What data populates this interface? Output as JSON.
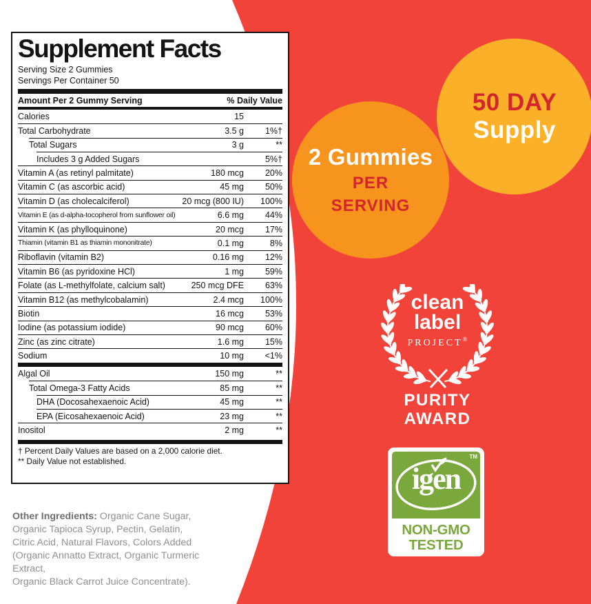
{
  "window": {
    "title": "Supplement Facts product label"
  },
  "colors": {
    "red_bg": "#F1433A",
    "deep_red_text": "#D2262C",
    "orange_circle": "#F7941E",
    "yellow_circle": "#FAB028",
    "green": "#7AA83C",
    "label_black": "#131313",
    "gray_text": "#8F8F8F",
    "gray_bold": "#6E6E6E"
  },
  "supplement": {
    "title": "Supplement Facts",
    "serving_size": "Serving Size 2 Gummies",
    "servings_per_container": "Servings Per Container 50",
    "header": {
      "amount": "Amount Per 2 Gummy Serving",
      "daily_value": "% Daily Value"
    },
    "rows": [
      {
        "name": "Calories",
        "amount": "15",
        "dv": "",
        "indent": 0
      },
      {
        "name": "Total Carbohydrate",
        "amount": "3.5 g",
        "dv": "1%†",
        "indent": 0
      },
      {
        "name": "Total Sugars",
        "amount": "3 g",
        "dv": "**",
        "indent": 1
      },
      {
        "name": "Includes 3 g Added Sugars",
        "amount": "",
        "dv": "5%†",
        "indent": 2
      },
      {
        "name": "Vitamin A (as retinyl palmitate)",
        "amount": "180 mcg",
        "dv": "20%",
        "indent": 0
      },
      {
        "name": "Vitamin C (as ascorbic acid)",
        "amount": "45 mg",
        "dv": "50%",
        "indent": 0
      },
      {
        "name": "Vitamin D (as cholecalciferol)",
        "amount": "20 mcg (800 IU)",
        "dv": "100%",
        "indent": 0
      },
      {
        "name": "Vitamin E (as d-alpha-tocopherol from sunflower oil)",
        "amount": "6.6 mg",
        "dv": "44%",
        "indent": 0
      },
      {
        "name": "Vitamin K (as phylloquinone)",
        "amount": "20 mcg",
        "dv": "17%",
        "indent": 0
      },
      {
        "name": "Thiamin (vitamin B1 as thiamin mononitrate)",
        "amount": "0.1 mg",
        "dv": "8%",
        "indent": 0
      },
      {
        "name": "Riboflavin (vitamin B2)",
        "amount": "0.16 mg",
        "dv": "12%",
        "indent": 0
      },
      {
        "name": "Vitamin B6 (as pyridoxine HCl)",
        "amount": "1 mg",
        "dv": "59%",
        "indent": 0
      },
      {
        "name": "Folate (as L-methylfolate, calcium salt)",
        "amount": "250 mcg DFE",
        "dv": "63%",
        "indent": 0
      },
      {
        "name": "Vitamin B12 (as methylcobalamin)",
        "amount": "2.4 mcg",
        "dv": "100%",
        "indent": 0
      },
      {
        "name": "Biotin",
        "amount": "16 mcg",
        "dv": "53%",
        "indent": 0
      },
      {
        "name": "Iodine (as potassium iodide)",
        "amount": "90 mcg",
        "dv": "60%",
        "indent": 0
      },
      {
        "name": "Zinc (as zinc citrate)",
        "amount": "1.6 mg",
        "dv": "15%",
        "indent": 0
      },
      {
        "name": "Sodium",
        "amount": "10 mg",
        "dv": "<1%",
        "indent": 0
      },
      {
        "name": "Algal Oil",
        "amount": "150 mg",
        "dv": "**",
        "indent": 0,
        "bar_before": true
      },
      {
        "name": "Total Omega-3 Fatty Acids",
        "amount": "85 mg",
        "dv": "**",
        "indent": 1
      },
      {
        "name": "DHA (Docosahexaenoic Acid)",
        "amount": "45 mg",
        "dv": "**",
        "indent": 2
      },
      {
        "name": "EPA (Eicosahexaenoic Acid)",
        "amount": "23 mg",
        "dv": "**",
        "indent": 2
      },
      {
        "name": "Inositol",
        "amount": "2 mg",
        "dv": "**",
        "indent": 0
      }
    ],
    "footnotes": [
      "† Percent Daily Values are based on a 2,000 calorie diet.",
      "** Daily Value not established."
    ]
  },
  "other_ingredients": {
    "label": "Other Ingredients:",
    "line1_rest": " Organic Cane Sugar,",
    "lines": [
      "Organic Tapioca Syrup, Pectin, Gelatin,",
      "Citric Acid, Natural Flavors, Colors Added",
      "(Organic Annatto Extract, Organic Turmeric Extract,",
      "Organic Black Carrot Juice Concentrate)."
    ]
  },
  "circles": {
    "supply": {
      "line1": "50 DAY",
      "line2": "Supply"
    },
    "serving": {
      "line1": "2 Gummies",
      "line2": "PER",
      "line3": "SERVING"
    }
  },
  "badges": {
    "clean_label": {
      "line1": "clean",
      "line2": "label",
      "line3": "PROJECT",
      "reg_mark": "®",
      "award_line1": "PURITY",
      "award_line2": "AWARD"
    },
    "igen": {
      "name": "igen",
      "tm": "TM",
      "line1": "NON-GMO",
      "line2": "TESTED"
    }
  }
}
